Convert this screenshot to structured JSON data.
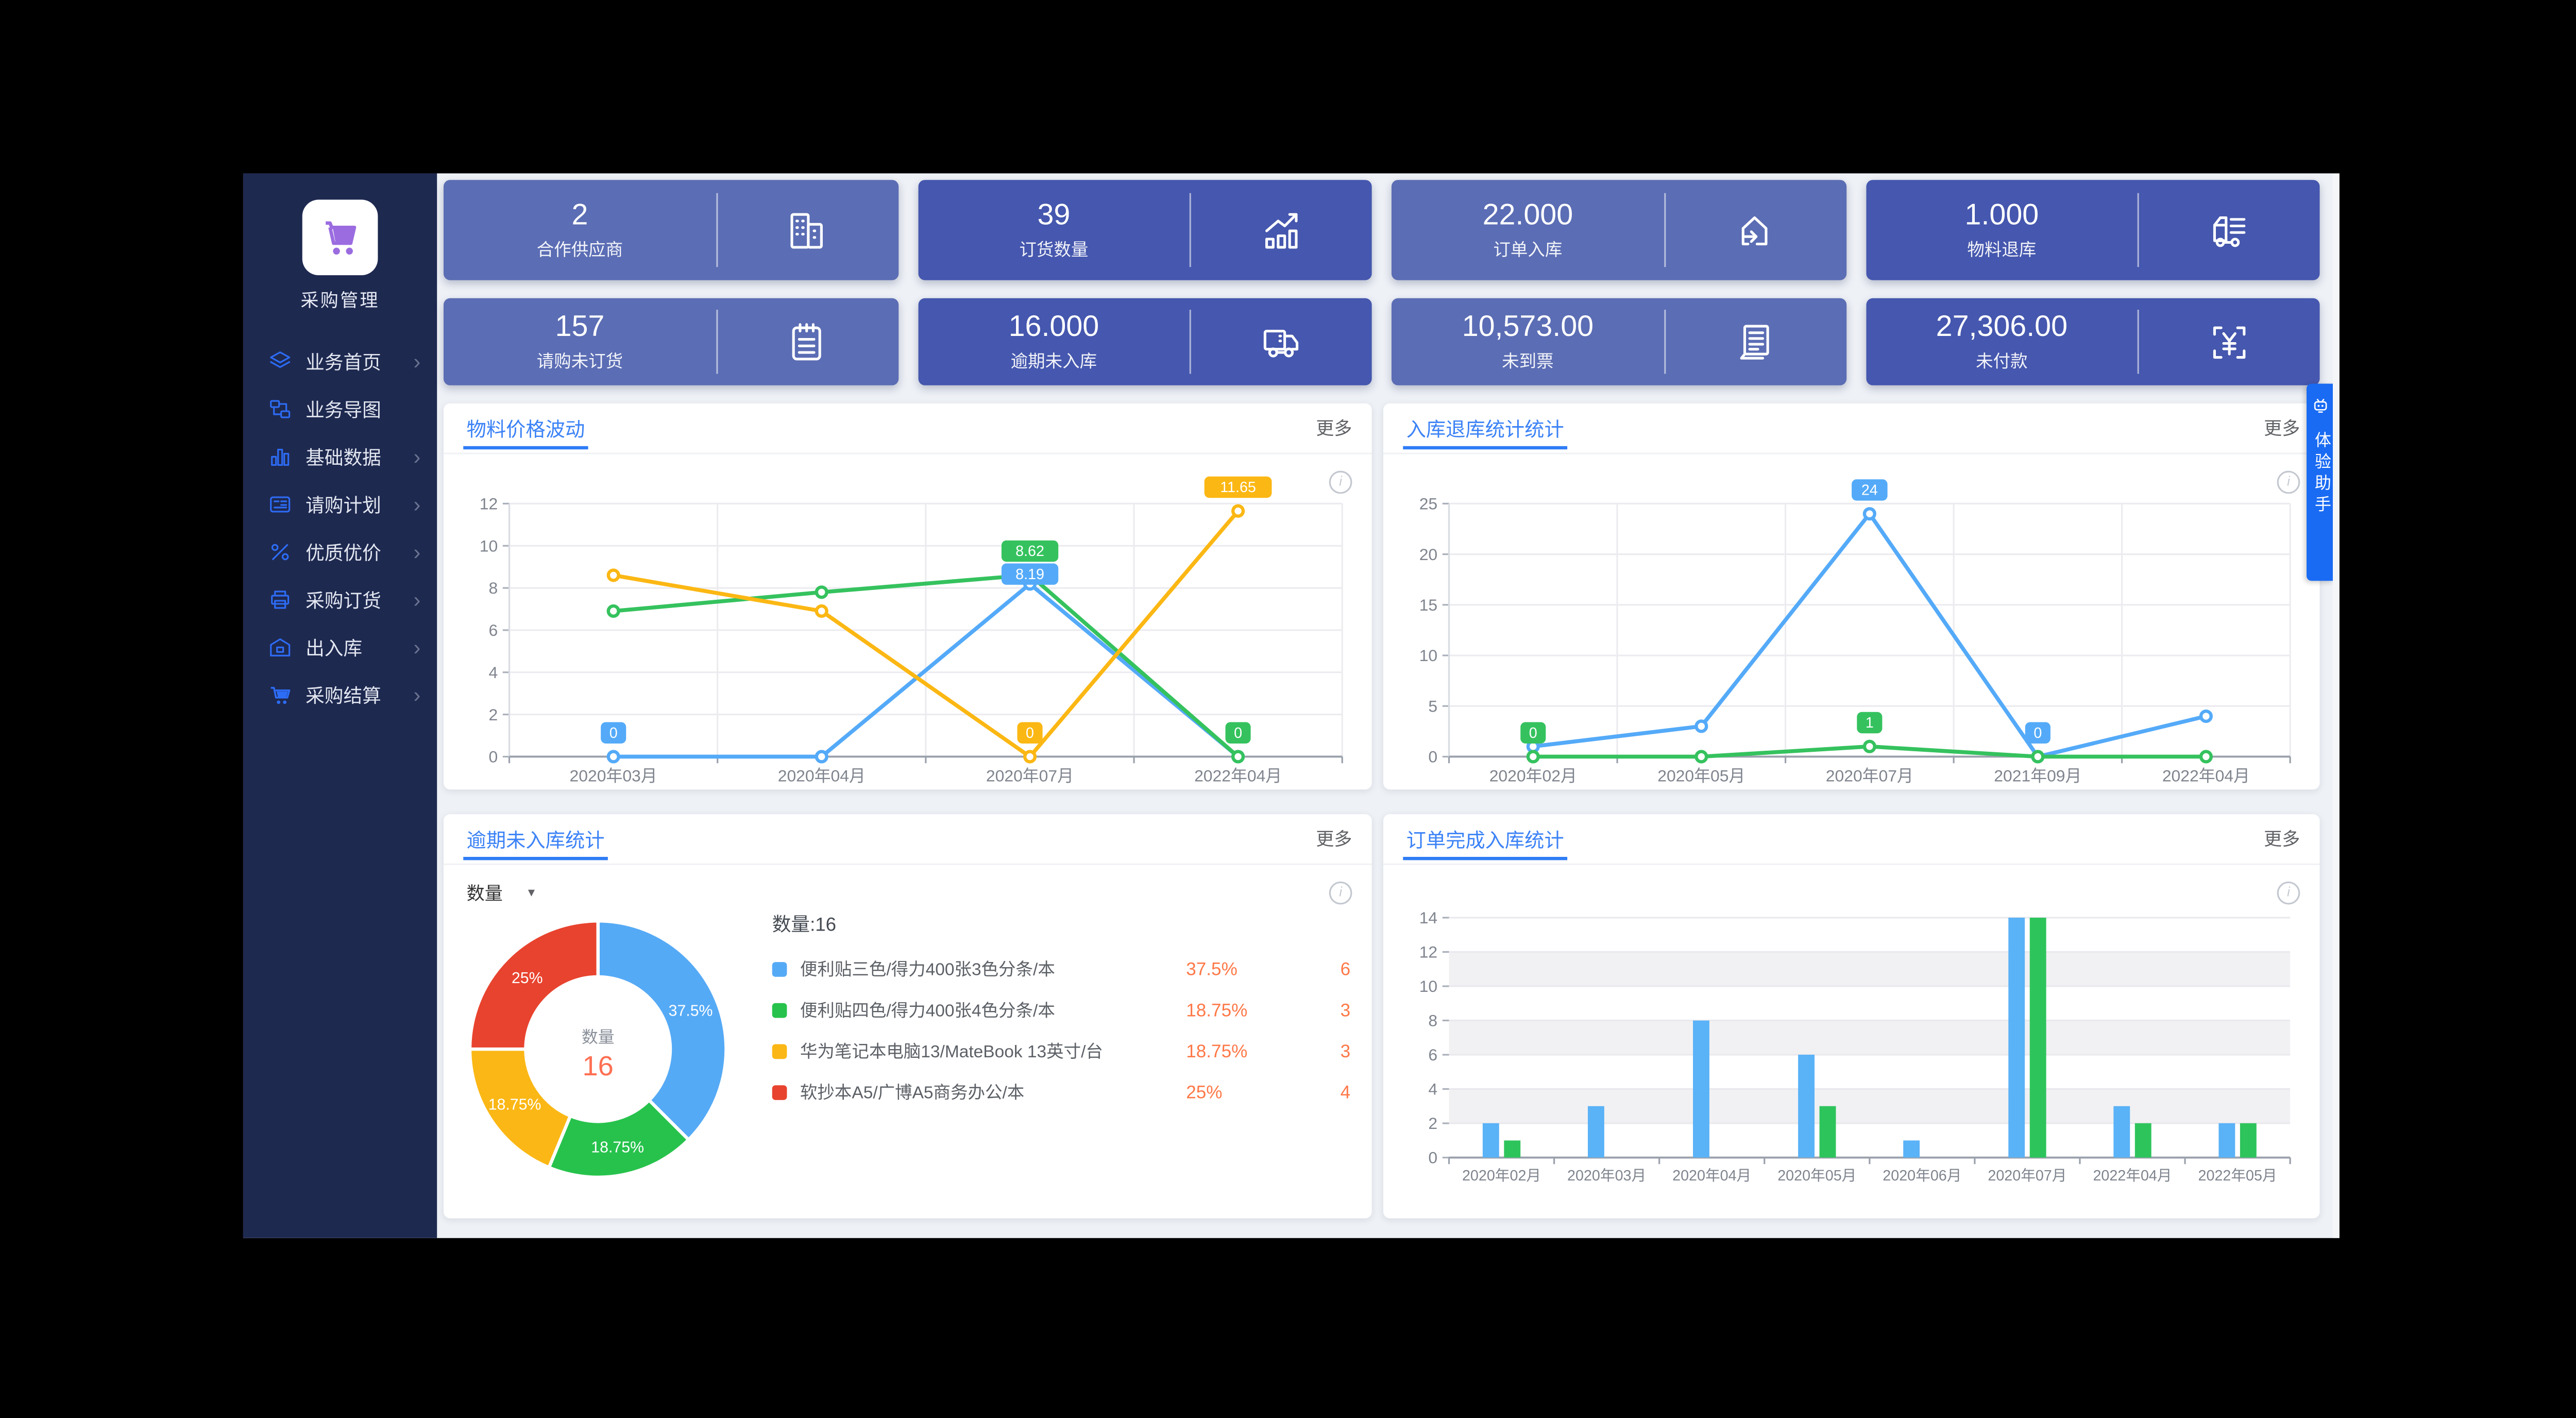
{
  "app": {
    "title": "采购管理"
  },
  "ui": {
    "more_label": "更多",
    "info_symbol": "i"
  },
  "sidebar": {
    "logo_label": "采购管理",
    "items": [
      {
        "key": "home",
        "label": "业务首页",
        "icon": "layers-icon",
        "chevron": true
      },
      {
        "key": "business-map",
        "label": "业务导图",
        "icon": "flow-map-icon",
        "chevron": false
      },
      {
        "key": "base-data",
        "label": "基础数据",
        "icon": "bar-chart-icon",
        "chevron": true
      },
      {
        "key": "purchase-plan",
        "label": "请购计划",
        "icon": "plan-doc-icon",
        "chevron": true
      },
      {
        "key": "quality-price",
        "label": "优质优价",
        "icon": "percent-icon",
        "chevron": true
      },
      {
        "key": "purchase-order",
        "label": "采购订货",
        "icon": "printer-icon",
        "chevron": true
      },
      {
        "key": "in-out-warehouse",
        "label": "出入库",
        "icon": "warehouse-icon",
        "chevron": true
      },
      {
        "key": "settlement",
        "label": "采购结算",
        "icon": "cart-icon",
        "chevron": true
      }
    ]
  },
  "stat_cards": [
    {
      "key": "suppliers",
      "value": "2",
      "label": "合作供应商",
      "icon": "buildings-icon",
      "tone": "light"
    },
    {
      "key": "order-qty",
      "value": "39",
      "label": "订货数量",
      "icon": "trend-chart-icon",
      "tone": "dark"
    },
    {
      "key": "order-inbound",
      "value": "22.000",
      "label": "订单入库",
      "icon": "inbound-house-icon",
      "tone": "light"
    },
    {
      "key": "material-return",
      "value": "1.000",
      "label": "物料退库",
      "icon": "return-truck-icon",
      "tone": "dark"
    },
    {
      "key": "request-not-ordered",
      "value": "157",
      "label": "请购未订货",
      "icon": "clipboard-icon",
      "tone": "light"
    },
    {
      "key": "overdue-not-inbound",
      "value": "16.000",
      "label": "逾期未入库",
      "icon": "delivery-truck-icon",
      "tone": "dark"
    },
    {
      "key": "invoice-pending",
      "value": "10,573.00",
      "label": "未到票",
      "icon": "documents-icon",
      "tone": "light"
    },
    {
      "key": "unpaid",
      "value": "27,306.00",
      "label": "未付款",
      "icon": "yuan-scan-icon",
      "tone": "dark"
    }
  ],
  "assistant_tab": {
    "label": "体验助手",
    "icon": "robot-icon",
    "color": "#1a6bf3"
  },
  "chart_data": [
    {
      "id": "material-price-fluctuation",
      "type": "line",
      "title": "物料价格波动",
      "categories": [
        "2020年03月",
        "2020年04月",
        "2020年07月",
        "2022年04月"
      ],
      "ylim": [
        0,
        12
      ],
      "ytick_step": 2,
      "grid": true,
      "legend_position": "none",
      "series": [
        {
          "name": "blue",
          "color": "#54aaf8",
          "values": [
            0,
            0,
            8.19,
            0
          ],
          "badges": [
            {
              "index": 0,
              "text": "0"
            },
            {
              "index": 2,
              "text": "8.19"
            }
          ]
        },
        {
          "name": "green",
          "color": "#35c25e",
          "values": [
            6.9,
            7.8,
            8.62,
            0
          ],
          "badges": [
            {
              "index": 2,
              "text": "8.62"
            },
            {
              "index": 3,
              "text": "0"
            }
          ]
        },
        {
          "name": "yellow",
          "color": "#fbb713",
          "values": [
            8.6,
            6.9,
            0,
            11.65
          ],
          "badges": [
            {
              "index": 2,
              "text": "0"
            },
            {
              "index": 3,
              "text": "11.65"
            }
          ]
        }
      ]
    },
    {
      "id": "inbound-return-stats",
      "type": "line",
      "title": "入库退库统计统计",
      "categories": [
        "2020年02月",
        "2020年05月",
        "2020年07月",
        "2021年09月",
        "2022年04月"
      ],
      "ylim": [
        0,
        25
      ],
      "ytick_step": 5,
      "grid": true,
      "legend_position": "none",
      "series": [
        {
          "name": "blue",
          "color": "#54aaf8",
          "values": [
            1,
            3,
            24,
            0,
            4
          ],
          "badges": [
            {
              "index": 2,
              "text": "24"
            },
            {
              "index": 3,
              "text": "0"
            }
          ]
        },
        {
          "name": "green",
          "color": "#35c25e",
          "values": [
            0,
            0,
            1,
            0,
            0
          ],
          "badges": [
            {
              "index": 0,
              "text": "0"
            },
            {
              "index": 2,
              "text": "1"
            }
          ]
        }
      ]
    },
    {
      "id": "overdue-not-inbound-stats",
      "type": "pie",
      "title": "逾期未入库统计",
      "selector_label": "数量",
      "total_label": "数量:16",
      "center_label": "数量",
      "center_value": "16",
      "slices": [
        {
          "name": "便利贴三色/得力400张3色分条/本",
          "percent": "37.5%",
          "value": 6,
          "fraction": 0.375,
          "color": "#55aaf6"
        },
        {
          "name": "便利贴四色/得力400张4色分条/本",
          "percent": "18.75%",
          "value": 3,
          "fraction": 0.1875,
          "color": "#27c24c"
        },
        {
          "name": "华为笔记本电脑13/MateBook 13英寸/台",
          "percent": "18.75%",
          "value": 3,
          "fraction": 0.1875,
          "color": "#fbb715"
        },
        {
          "name": "软抄本A5/广博A5商务办公/本",
          "percent": "25%",
          "value": 4,
          "fraction": 0.25,
          "color": "#e8432e"
        }
      ]
    },
    {
      "id": "order-complete-inbound-stats",
      "type": "bar",
      "title": "订单完成入库统计",
      "categories": [
        "2020年02月",
        "2020年03月",
        "2020年04月",
        "2020年05月",
        "2020年06月",
        "2020年07月",
        "2022年04月",
        "2022年05月"
      ],
      "ylim": [
        0,
        14
      ],
      "ytick_step": 2,
      "split_area": true,
      "legend_position": "none",
      "series": [
        {
          "name": "blue",
          "color": "#5ab2f7",
          "values": [
            2,
            3,
            8,
            6,
            1,
            14,
            3,
            2
          ]
        },
        {
          "name": "green",
          "color": "#2ec45c",
          "values": [
            1,
            0,
            0,
            3,
            0,
            14,
            2,
            2
          ]
        }
      ]
    }
  ],
  "colors": {
    "sidebar_bg": "#1e2950",
    "main_bg": "#eef1f6",
    "card_light": "#5b6db4",
    "card_dark": "#4557ae",
    "title_blue": "#3b82f6",
    "accent_orange": "#ff7847",
    "assistant_blue": "#1a6bf3",
    "menu_icon_blue": "#2d6cf5",
    "logo_cart_purple": "#9b6ce0"
  }
}
